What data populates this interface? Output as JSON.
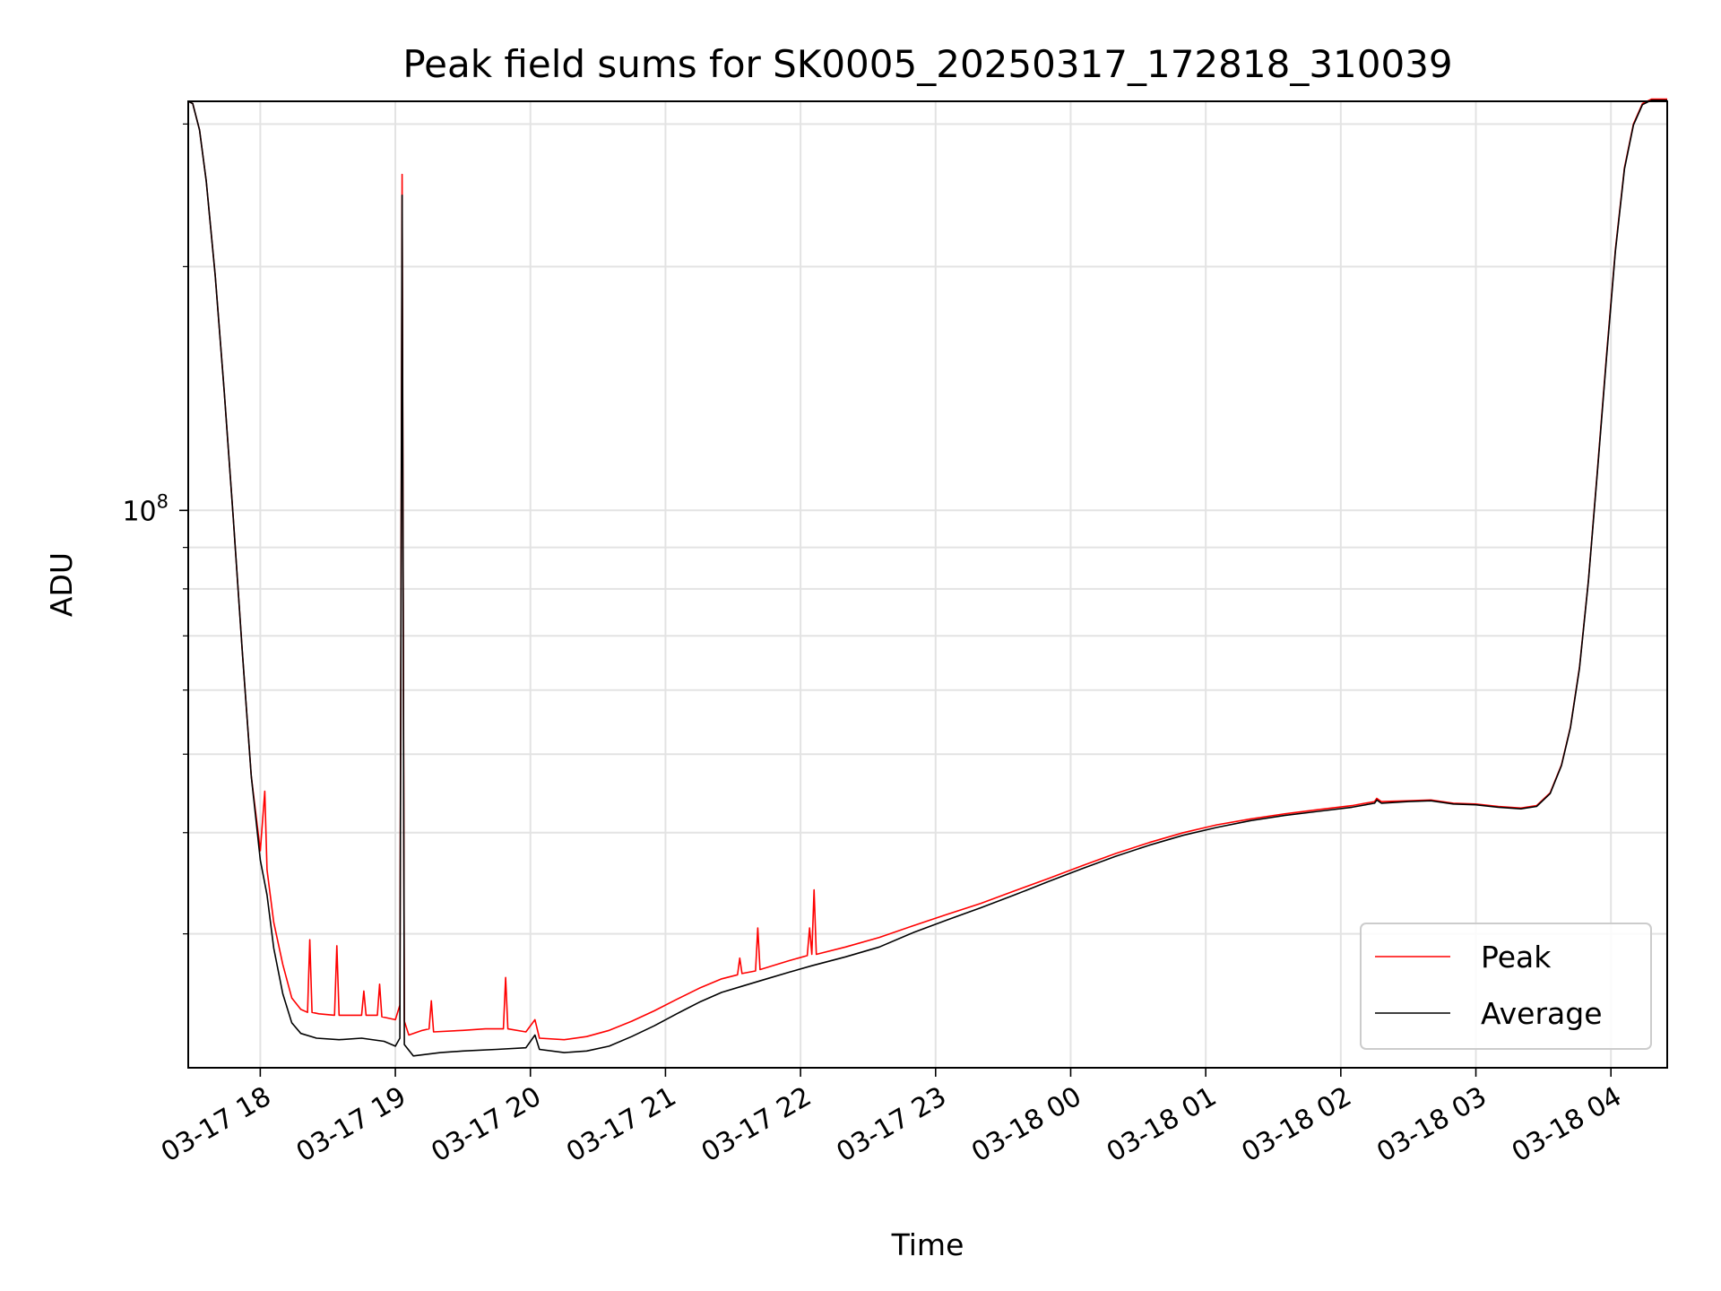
{
  "chart_data": {
    "type": "line",
    "title": "Peak field sums for SK0005_20250317_172818_310039",
    "xlabel": "Time",
    "ylabel": "ADU",
    "y_scale": "log",
    "grid": true,
    "legend_position": "lower-right",
    "x_range": [
      "03-17 17:28",
      "03-18 04:25"
    ],
    "ylim": [
      20500000,
      320000000
    ],
    "x_tick_labels": [
      "03-17 18",
      "03-17 19",
      "03-17 20",
      "03-17 21",
      "03-17 22",
      "03-17 23",
      "03-18 00",
      "03-18 01",
      "03-18 02",
      "03-18 03",
      "03-18 04"
    ],
    "y_major_tick": {
      "value": 100000000,
      "base": "10",
      "exponent": "8"
    },
    "series": [
      {
        "name": "Peak",
        "color": "#ff0000",
        "points": [
          [
            "03-17 17:28",
            320000000
          ],
          [
            "03-17 17:30",
            318000000
          ],
          [
            "03-17 17:33",
            295000000
          ],
          [
            "03-17 17:36",
            255000000
          ],
          [
            "03-17 17:40",
            195000000
          ],
          [
            "03-17 17:44",
            140000000
          ],
          [
            "03-17 17:48",
            98000000
          ],
          [
            "03-17 17:52",
            67000000
          ],
          [
            "03-17 17:56",
            47000000
          ],
          [
            "03-17 18:00",
            38000000
          ],
          [
            "03-17 18:02",
            45000000
          ],
          [
            "03-17 18:03",
            36000000
          ],
          [
            "03-17 18:06",
            31000000
          ],
          [
            "03-17 18:10",
            27500000
          ],
          [
            "03-17 18:14",
            25000000
          ],
          [
            "03-17 18:18",
            24200000
          ],
          [
            "03-17 18:21",
            24000000
          ],
          [
            "03-17 18:22",
            29500000
          ],
          [
            "03-17 18:23",
            24000000
          ],
          [
            "03-17 18:26",
            23900000
          ],
          [
            "03-17 18:33",
            23800000
          ],
          [
            "03-17 18:34",
            29000000
          ],
          [
            "03-17 18:35",
            23800000
          ],
          [
            "03-17 18:45",
            23800000
          ],
          [
            "03-17 18:46",
            25500000
          ],
          [
            "03-17 18:47",
            23800000
          ],
          [
            "03-17 18:52",
            23800000
          ],
          [
            "03-17 18:53",
            26000000
          ],
          [
            "03-17 18:54",
            23700000
          ],
          [
            "03-17 19:00",
            23500000
          ],
          [
            "03-17 19:02",
            24500000
          ],
          [
            "03-17 19:03",
            260000000
          ],
          [
            "03-17 19:04",
            23400000
          ],
          [
            "03-17 19:06",
            22500000
          ],
          [
            "03-17 19:12",
            22800000
          ],
          [
            "03-17 19:15",
            22900000
          ],
          [
            "03-17 19:16",
            24800000
          ],
          [
            "03-17 19:17",
            22700000
          ],
          [
            "03-17 19:30",
            22800000
          ],
          [
            "03-17 19:40",
            22900000
          ],
          [
            "03-17 19:48",
            22900000
          ],
          [
            "03-17 19:49",
            26500000
          ],
          [
            "03-17 19:50",
            22900000
          ],
          [
            "03-17 19:58",
            22700000
          ],
          [
            "03-17 20:02",
            23500000
          ],
          [
            "03-17 20:04",
            22300000
          ],
          [
            "03-17 20:15",
            22200000
          ],
          [
            "03-17 20:25",
            22400000
          ],
          [
            "03-17 20:35",
            22800000
          ],
          [
            "03-17 20:45",
            23400000
          ],
          [
            "03-17 20:55",
            24100000
          ],
          [
            "03-17 21:05",
            24900000
          ],
          [
            "03-17 21:15",
            25700000
          ],
          [
            "03-17 21:25",
            26400000
          ],
          [
            "03-17 21:32",
            26700000
          ],
          [
            "03-17 21:33",
            28000000
          ],
          [
            "03-17 21:34",
            26800000
          ],
          [
            "03-17 21:40",
            27000000
          ],
          [
            "03-17 21:41",
            30500000
          ],
          [
            "03-17 21:42",
            27100000
          ],
          [
            "03-17 21:55",
            27800000
          ],
          [
            "03-17 22:03",
            28200000
          ],
          [
            "03-17 22:04",
            30500000
          ],
          [
            "03-17 22:05",
            28300000
          ],
          [
            "03-17 22:06",
            34000000
          ],
          [
            "03-17 22:07",
            28300000
          ],
          [
            "03-17 22:20",
            28900000
          ],
          [
            "03-17 22:35",
            29700000
          ],
          [
            "03-17 22:50",
            30700000
          ],
          [
            "03-17 23:05",
            31700000
          ],
          [
            "03-17 23:20",
            32700000
          ],
          [
            "03-17 23:35",
            33900000
          ],
          [
            "03-17 23:50",
            35100000
          ],
          [
            "03-18 00:05",
            36400000
          ],
          [
            "03-18 00:20",
            37700000
          ],
          [
            "03-18 00:35",
            38900000
          ],
          [
            "03-18 00:50",
            40000000
          ],
          [
            "03-18 01:05",
            40900000
          ],
          [
            "03-18 01:20",
            41600000
          ],
          [
            "03-18 01:35",
            42200000
          ],
          [
            "03-18 01:50",
            42700000
          ],
          [
            "03-18 02:05",
            43200000
          ],
          [
            "03-18 02:15",
            43700000
          ],
          [
            "03-18 02:16",
            44100000
          ],
          [
            "03-18 02:18",
            43700000
          ],
          [
            "03-18 02:30",
            43800000
          ],
          [
            "03-18 02:40",
            43900000
          ],
          [
            "03-18 02:50",
            43500000
          ],
          [
            "03-18 03:00",
            43400000
          ],
          [
            "03-18 03:10",
            43100000
          ],
          [
            "03-18 03:20",
            42900000
          ],
          [
            "03-18 03:27",
            43200000
          ],
          [
            "03-18 03:33",
            44800000
          ],
          [
            "03-18 03:38",
            48500000
          ],
          [
            "03-18 03:42",
            54000000
          ],
          [
            "03-18 03:46",
            64000000
          ],
          [
            "03-18 03:50",
            82000000
          ],
          [
            "03-18 03:54",
            112000000
          ],
          [
            "03-18 03:58",
            155000000
          ],
          [
            "03-18 04:02",
            210000000
          ],
          [
            "03-18 04:06",
            265000000
          ],
          [
            "03-18 04:10",
            300000000
          ],
          [
            "03-18 04:14",
            318000000
          ],
          [
            "03-18 04:18",
            322000000
          ],
          [
            "03-18 04:25",
            322000000
          ]
        ]
      },
      {
        "name": "Average",
        "color": "#000000",
        "points": [
          [
            "03-17 17:28",
            320000000
          ],
          [
            "03-17 17:30",
            318000000
          ],
          [
            "03-17 17:33",
            295000000
          ],
          [
            "03-17 17:36",
            255000000
          ],
          [
            "03-17 17:40",
            195000000
          ],
          [
            "03-17 17:44",
            140000000
          ],
          [
            "03-17 17:48",
            98000000
          ],
          [
            "03-17 17:52",
            67000000
          ],
          [
            "03-17 17:56",
            47000000
          ],
          [
            "03-17 18:00",
            37000000
          ],
          [
            "03-17 18:03",
            33500000
          ],
          [
            "03-17 18:06",
            28800000
          ],
          [
            "03-17 18:10",
            25300000
          ],
          [
            "03-17 18:14",
            23300000
          ],
          [
            "03-17 18:18",
            22600000
          ],
          [
            "03-17 18:25",
            22300000
          ],
          [
            "03-17 18:35",
            22200000
          ],
          [
            "03-17 18:45",
            22300000
          ],
          [
            "03-17 18:55",
            22100000
          ],
          [
            "03-17 19:00",
            21800000
          ],
          [
            "03-17 19:02",
            22300000
          ],
          [
            "03-17 19:03",
            245000000
          ],
          [
            "03-17 19:04",
            21900000
          ],
          [
            "03-17 19:08",
            21200000
          ],
          [
            "03-17 19:20",
            21400000
          ],
          [
            "03-17 19:30",
            21500000
          ],
          [
            "03-17 19:45",
            21600000
          ],
          [
            "03-17 19:58",
            21700000
          ],
          [
            "03-17 20:02",
            22500000
          ],
          [
            "03-17 20:04",
            21600000
          ],
          [
            "03-17 20:15",
            21400000
          ],
          [
            "03-17 20:25",
            21500000
          ],
          [
            "03-17 20:35",
            21800000
          ],
          [
            "03-17 20:45",
            22400000
          ],
          [
            "03-17 20:55",
            23100000
          ],
          [
            "03-17 21:05",
            23900000
          ],
          [
            "03-17 21:15",
            24700000
          ],
          [
            "03-17 21:25",
            25400000
          ],
          [
            "03-17 21:35",
            25900000
          ],
          [
            "03-17 21:45",
            26400000
          ],
          [
            "03-17 21:55",
            26900000
          ],
          [
            "03-17 22:05",
            27400000
          ],
          [
            "03-17 22:20",
            28100000
          ],
          [
            "03-17 22:35",
            28900000
          ],
          [
            "03-17 22:50",
            30100000
          ],
          [
            "03-17 23:05",
            31200000
          ],
          [
            "03-17 23:20",
            32300000
          ],
          [
            "03-17 23:35",
            33500000
          ],
          [
            "03-17 23:50",
            34800000
          ],
          [
            "03-18 00:05",
            36100000
          ],
          [
            "03-18 00:20",
            37400000
          ],
          [
            "03-18 00:35",
            38600000
          ],
          [
            "03-18 00:50",
            39700000
          ],
          [
            "03-18 01:05",
            40600000
          ],
          [
            "03-18 01:20",
            41400000
          ],
          [
            "03-18 01:35",
            42000000
          ],
          [
            "03-18 01:50",
            42500000
          ],
          [
            "03-18 02:05",
            43000000
          ],
          [
            "03-18 02:15",
            43500000
          ],
          [
            "03-18 02:16",
            43900000
          ],
          [
            "03-18 02:18",
            43500000
          ],
          [
            "03-18 02:30",
            43700000
          ],
          [
            "03-18 02:40",
            43800000
          ],
          [
            "03-18 02:50",
            43400000
          ],
          [
            "03-18 03:00",
            43300000
          ],
          [
            "03-18 03:10",
            43000000
          ],
          [
            "03-18 03:20",
            42800000
          ],
          [
            "03-18 03:27",
            43100000
          ],
          [
            "03-18 03:33",
            44700000
          ],
          [
            "03-18 03:38",
            48400000
          ],
          [
            "03-18 03:42",
            53900000
          ],
          [
            "03-18 03:46",
            63800000
          ],
          [
            "03-18 03:50",
            81800000
          ],
          [
            "03-18 03:54",
            111500000
          ],
          [
            "03-18 03:58",
            154000000
          ],
          [
            "03-18 04:02",
            209000000
          ],
          [
            "03-18 04:06",
            264000000
          ],
          [
            "03-18 04:10",
            299000000
          ],
          [
            "03-18 04:14",
            317000000
          ],
          [
            "03-18 04:18",
            321000000
          ],
          [
            "03-18 04:25",
            321000000
          ]
        ]
      }
    ]
  }
}
